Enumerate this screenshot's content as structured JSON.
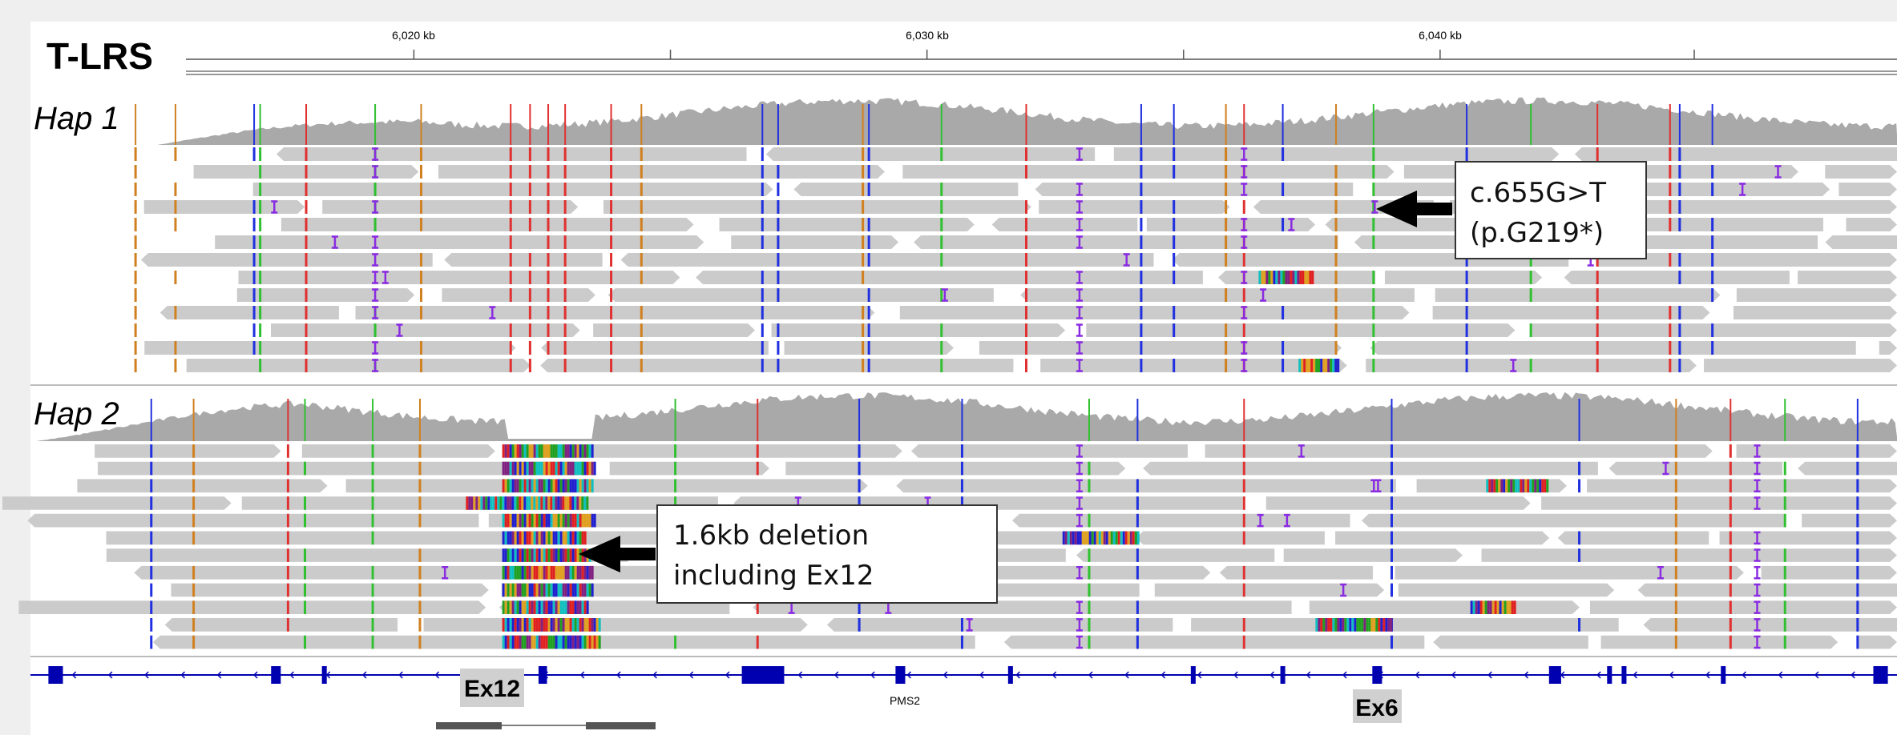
{
  "header": {
    "title": "T-LRS"
  },
  "ruler": {
    "labels": [
      "6,020 kb",
      "6,030 kb",
      "6,040 kb"
    ]
  },
  "tracks": [
    {
      "label": "Hap 1"
    },
    {
      "label": "Hap 2"
    }
  ],
  "annotations": [
    {
      "lines": [
        "c.655G>T",
        "(p.G219*)"
      ]
    },
    {
      "lines": [
        "1.6kb deletion",
        "including Ex12"
      ]
    }
  ],
  "gene": {
    "name": "PMS2",
    "exons": [
      "Ex12",
      "Ex6"
    ]
  }
}
